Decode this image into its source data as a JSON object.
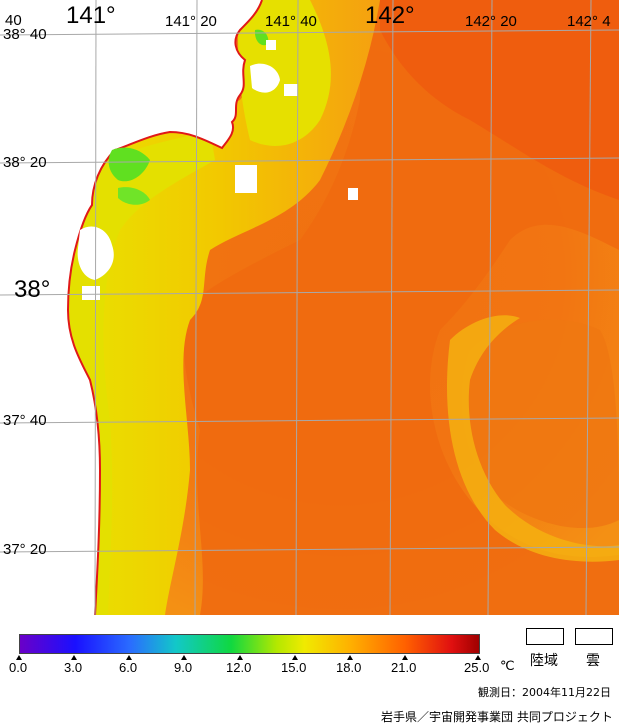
{
  "map": {
    "lon_labels": {
      "lon_140_40": "40",
      "lon_141": "141°",
      "lon_141_20": "141° 20",
      "lon_141_40": "141° 40",
      "lon_142": "142°",
      "lon_142_20": "142° 20",
      "lon_142_40": "142° 4"
    },
    "lat_labels": {
      "lat_38_40": "38° 40",
      "lat_38_20": "38° 20",
      "lat_38": "38°",
      "lat_37_40": "37° 40",
      "lat_37_20": "37° 20"
    },
    "colors": {
      "coast": "#e01818",
      "grid": "#a8a8a8",
      "warm": "#f06010",
      "mid": "#f59010",
      "cool": "#e8e000",
      "land": "#ffffff",
      "cloud": "#ffffff",
      "green": "#50e020"
    }
  },
  "scale": {
    "ticks": [
      "0.0",
      "3.0",
      "6.0",
      "9.0",
      "12.0",
      "15.0",
      "18.0",
      "21.0",
      "25.0"
    ],
    "unit": "℃"
  },
  "legend": {
    "land": "陸域",
    "cloud": "雲"
  },
  "footer": {
    "observation_date": "観測日：2004年11月22日",
    "credit": "岩手県／宇宙開発事業団 共同プロジェクト"
  }
}
